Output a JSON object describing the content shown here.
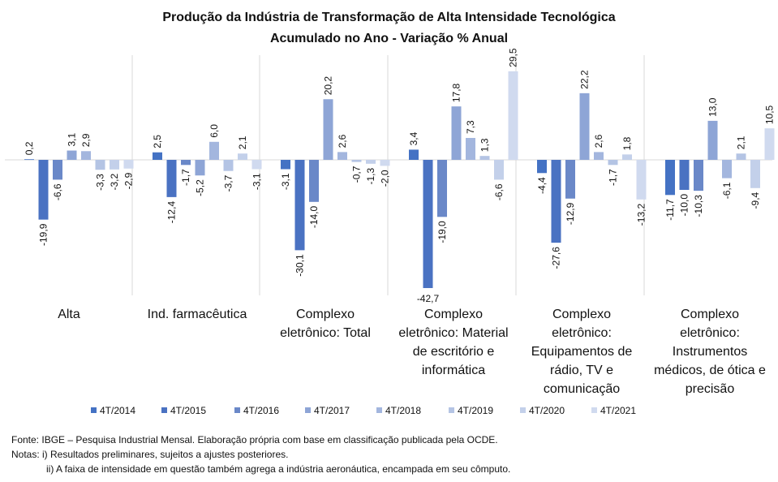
{
  "chart_data": {
    "type": "bar",
    "title": "Produção da Indústria de Transformação de Alta Intensidade Tecnológica",
    "subtitle": "Acumulado no Ano - Variação % Anual",
    "categories": [
      [
        "Alta"
      ],
      [
        "Ind. farmacêutica"
      ],
      [
        "Complexo",
        "eletrônico: Total"
      ],
      [
        "Complexo",
        "eletrônico: Material",
        "de escritório e",
        "informática"
      ],
      [
        "Complexo",
        "eletrônico:",
        "Equipamentos de",
        "rádio, TV e",
        "comunicação"
      ],
      [
        "Complexo",
        "eletrônico:",
        "Instrumentos",
        "médicos, de ótica e",
        "precisão"
      ]
    ],
    "series": [
      {
        "name": "4T/2014",
        "color": "#4472C4",
        "values": [
          0.2,
          2.5,
          -3.1,
          3.4,
          -4.4,
          -11.7
        ]
      },
      {
        "name": "4T/2015",
        "color": "#4A72C2",
        "values": [
          -19.9,
          -12.4,
          -30.1,
          -42.7,
          -27.6,
          -10.0
        ]
      },
      {
        "name": "4T/2016",
        "color": "#6A88C8",
        "values": [
          -6.6,
          -1.7,
          -14.0,
          -19.0,
          -12.9,
          -10.3
        ]
      },
      {
        "name": "4T/2017",
        "color": "#8EA5D6",
        "values": [
          3.1,
          -5.2,
          20.2,
          17.8,
          22.2,
          13.0
        ]
      },
      {
        "name": "4T/2018",
        "color": "#A3B6DE",
        "values": [
          2.9,
          6.0,
          2.6,
          7.3,
          2.6,
          -6.1
        ]
      },
      {
        "name": "4T/2019",
        "color": "#B4C4E4",
        "values": [
          -3.3,
          -3.7,
          -0.7,
          1.3,
          -1.7,
          2.1
        ]
      },
      {
        "name": "4T/2020",
        "color": "#C3D0EA",
        "values": [
          -3.2,
          2.1,
          -1.3,
          -6.6,
          1.8,
          -9.4
        ]
      },
      {
        "name": "4T/2021",
        "color": "#D0DAEF",
        "values": [
          -2.9,
          -3.1,
          -2.0,
          29.5,
          -13.2,
          10.5
        ]
      }
    ],
    "ylim": [
      -43,
      30
    ],
    "grid": false,
    "legend": "bottom",
    "data_labels": true
  },
  "footnotes": {
    "source": "Fonte: IBGE – Pesquisa Industrial Mensal. Elaboração própria com base em classificação publicada pela OCDE.",
    "note1": "Notas: i) Resultados preliminares, sujeitos a ajustes posteriores.",
    "note2": "ii) A faixa de intensidade em questão também agrega a indústria aeronáutica, encampada em seu cômputo."
  }
}
